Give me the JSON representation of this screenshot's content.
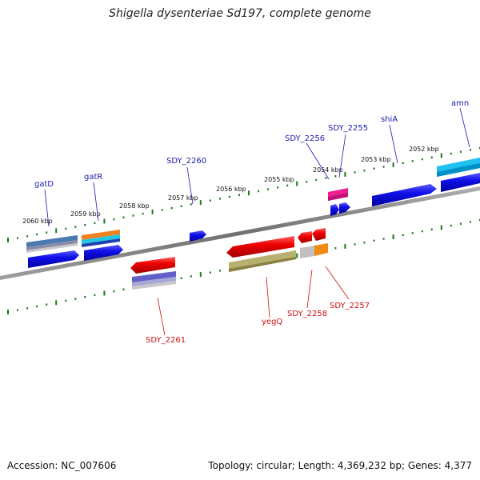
{
  "title": "Shigella dysenteriae Sd197, complete genome",
  "footer": {
    "accession": "Accession: NC_007606",
    "topology": "Topology: circular; Length: 4,369,232 bp; Genes: 4,377"
  },
  "colors": {
    "backbone": "#808080",
    "tick": "#1a7a1a",
    "forward_label": "#1a1aaa",
    "reverse_label": "#cc1111"
  },
  "kbp_labels": [
    "2060 kbp",
    "2059 kbp",
    "2058 kbp",
    "2057 kbp",
    "2056 kbp",
    "2055 kbp",
    "2054 kbp",
    "2053 kbp",
    "2052 kbp"
  ],
  "genes_forward": [
    {
      "name": "gatD",
      "color": "#1010e0"
    },
    {
      "name": "gatR",
      "color": "#1010e0"
    },
    {
      "name": "SDY_2260",
      "color": "#1010e0"
    },
    {
      "name": "SDY_2256",
      "color": "#1010e0"
    },
    {
      "name": "SDY_2255",
      "color": "#1010e0"
    },
    {
      "name": "shiA",
      "color": "#1010e0"
    },
    {
      "name": "amn",
      "color": "#1010e0"
    }
  ],
  "genes_reverse": [
    {
      "name": "SDY_2261",
      "color": "#e00000"
    },
    {
      "name": "yegQ",
      "color": "#e00000"
    },
    {
      "name": "SDY_2258",
      "color": "#e00000"
    },
    {
      "name": "SDY_2257",
      "color": "#e00000"
    }
  ]
}
